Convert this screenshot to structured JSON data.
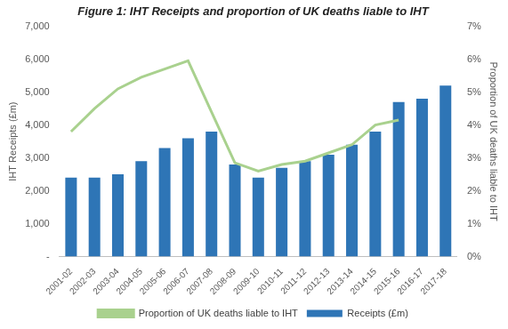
{
  "chart_data": {
    "type": "bar",
    "title": "Figure 1: IHT Receipts and proportion of UK deaths liable to IHT",
    "y_label": "IHT Receipts (£m)",
    "y2_label": "Proportion of UK deaths liable to IHT",
    "categories": [
      "2001-02",
      "2002-03",
      "2003-04",
      "2004-05",
      "2005-06",
      "2006-07",
      "2007-08",
      "2008-09",
      "2009-10",
      "2010-11",
      "2011-12",
      "2012-13",
      "2013-14",
      "2014-15",
      "2015-16",
      "2016-17",
      "2017-18"
    ],
    "series": [
      {
        "name": "Receipts (£m)",
        "type": "bar",
        "color": "#2e75b6",
        "values": [
          2400,
          2400,
          2500,
          2900,
          3300,
          3600,
          3800,
          2800,
          2400,
          2700,
          2900,
          3100,
          3400,
          3800,
          4700,
          4800,
          5200
        ]
      },
      {
        "name": "Proportion of UK deaths liable to IHT",
        "type": "line",
        "axis": "y2",
        "color": "#a9d18e",
        "values": [
          3.8,
          4.5,
          5.1,
          5.45,
          5.7,
          5.95,
          4.4,
          2.85,
          2.6,
          2.8,
          2.9,
          3.15,
          3.4,
          4.0,
          4.15,
          null,
          null
        ]
      }
    ],
    "ylim": [
      0,
      7000
    ],
    "yticks": [
      {
        "value": 0,
        "label": "-"
      },
      {
        "value": 1000,
        "label": "1,000"
      },
      {
        "value": 2000,
        "label": "2,000"
      },
      {
        "value": 3000,
        "label": "3,000"
      },
      {
        "value": 4000,
        "label": "4,000"
      },
      {
        "value": 5000,
        "label": "5,000"
      },
      {
        "value": 6000,
        "label": "6,000"
      },
      {
        "value": 7000,
        "label": "7,000"
      }
    ],
    "y2lim": [
      0,
      7
    ],
    "y2ticks": [
      {
        "value": 0,
        "label": "0%"
      },
      {
        "value": 1,
        "label": "1%"
      },
      {
        "value": 2,
        "label": "2%"
      },
      {
        "value": 3,
        "label": "3%"
      },
      {
        "value": 4,
        "label": "4%"
      },
      {
        "value": 5,
        "label": "5%"
      },
      {
        "value": 6,
        "label": "6%"
      },
      {
        "value": 7,
        "label": "7%"
      }
    ],
    "grid": false,
    "legend": "bottom"
  }
}
